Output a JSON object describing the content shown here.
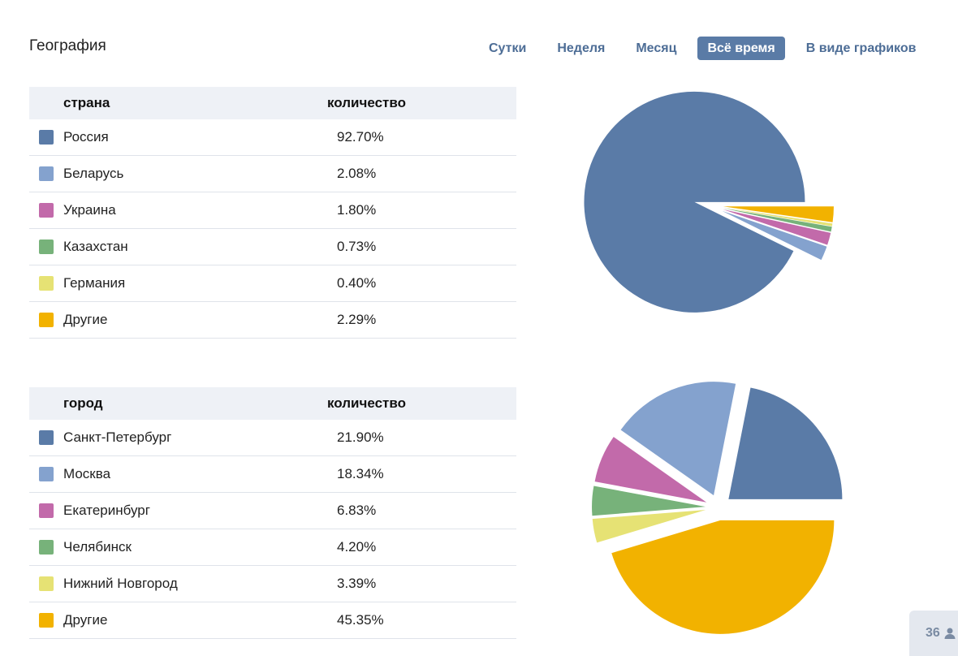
{
  "header": {
    "title": "География",
    "tabs": [
      {
        "label": "Сутки",
        "active": false
      },
      {
        "label": "Неделя",
        "active": false
      },
      {
        "label": "Месяц",
        "active": false
      },
      {
        "label": "Всё время",
        "active": true
      },
      {
        "label": "В виде графиков",
        "active": false
      }
    ]
  },
  "colors": {
    "series": [
      "#5a7ba7",
      "#84a2ce",
      "#c26aaa",
      "#77b27a",
      "#e6e274",
      "#f2b200"
    ],
    "accent": "#5a7ba6"
  },
  "countries": {
    "col_name": "страна",
    "col_count": "количество",
    "rows": [
      {
        "name": "Россия",
        "value": "92.70%"
      },
      {
        "name": "Беларусь",
        "value": "2.08%"
      },
      {
        "name": "Украина",
        "value": "1.80%"
      },
      {
        "name": "Казахстан",
        "value": "0.73%"
      },
      {
        "name": "Германия",
        "value": "0.40%"
      },
      {
        "name": "Другие",
        "value": "2.29%"
      }
    ]
  },
  "cities": {
    "col_name": "город",
    "col_count": "количество",
    "rows": [
      {
        "name": "Санкт-Петербург",
        "value": "21.90%"
      },
      {
        "name": "Москва",
        "value": "18.34%"
      },
      {
        "name": "Екатеринбург",
        "value": "6.83%"
      },
      {
        "name": "Челябинск",
        "value": "4.20%"
      },
      {
        "name": "Нижний Новгород",
        "value": "3.39%"
      },
      {
        "name": "Другие",
        "value": "45.35%"
      }
    ]
  },
  "chart_data": [
    {
      "type": "pie",
      "categories": [
        "Россия",
        "Беларусь",
        "Украина",
        "Казахстан",
        "Германия",
        "Другие"
      ],
      "values": [
        92.7,
        2.08,
        1.8,
        0.73,
        0.4,
        2.29
      ]
    },
    {
      "type": "pie",
      "categories": [
        "Санкт-Петербург",
        "Москва",
        "Екатеринбург",
        "Челябинск",
        "Нижний Новгород",
        "Другие"
      ],
      "values": [
        21.9,
        18.34,
        6.83,
        4.2,
        3.39,
        45.35
      ]
    }
  ],
  "footer": {
    "counter": "36"
  }
}
